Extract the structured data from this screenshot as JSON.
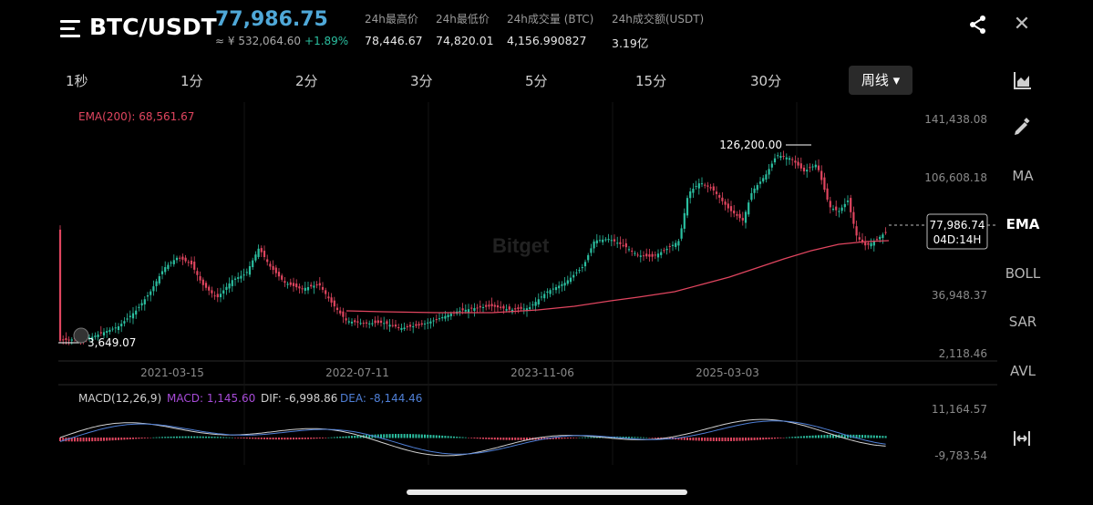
{
  "header": {
    "pair": "BTC/USDT",
    "last_price": "77,986.75",
    "cny_price": "≈ ¥ 532,064.60",
    "change_pct": "+1.89%",
    "stats": [
      {
        "label": "24h最高价",
        "value": "78,446.67"
      },
      {
        "label": "24h最低价",
        "value": "74,820.01"
      },
      {
        "label": "24h成交量 (BTC)",
        "value": "4,156.990827"
      },
      {
        "label": "24h成交额(USDT)",
        "value": "3.19亿"
      }
    ]
  },
  "timeframes": [
    "1秒",
    "1分",
    "2分",
    "3分",
    "5分",
    "15分",
    "30分"
  ],
  "active_timeframe": "周线 ▾",
  "indicators": [
    "MA",
    "EMA",
    "BOLL",
    "SAR",
    "AVL"
  ],
  "active_indicator": "EMA",
  "colors": {
    "up": "#2bbfa0",
    "down": "#e0455f",
    "ema": "#e0455f",
    "accent": "#4fa8d8",
    "macd": "#a74bd8",
    "dif": "#d0d0d0",
    "dea": "#4f7fd6"
  },
  "chart": {
    "ema_label": "EMA(200): 68,561.67",
    "price_axis": [
      "141,438.08",
      "106,608.18",
      "36,948.37",
      "2,118.46"
    ],
    "date_axis": [
      "2021-03-15",
      "2022-07-11",
      "2023-11-06",
      "2025-03-03"
    ],
    "high_marker": "126,200.00",
    "low_marker": "3,649.07",
    "current_price_box": "77,986.74",
    "countdown": "04D:14H",
    "watermark": "Bitget"
  },
  "macd": {
    "label": "MACD(12,26,9)",
    "macd_value": "MACD: 1,145.60",
    "dif_value": "DIF: -6,998.86",
    "dea_value": "DEA: -8,144.46",
    "axis": [
      "11,164.57",
      "-9,783.54"
    ]
  },
  "icons": {
    "menu": "menu-icon",
    "share": "share-icon",
    "close": "close-icon",
    "chart_type": "area-chart-icon",
    "draw": "pencil-icon",
    "fit": "fit-width-icon"
  }
}
